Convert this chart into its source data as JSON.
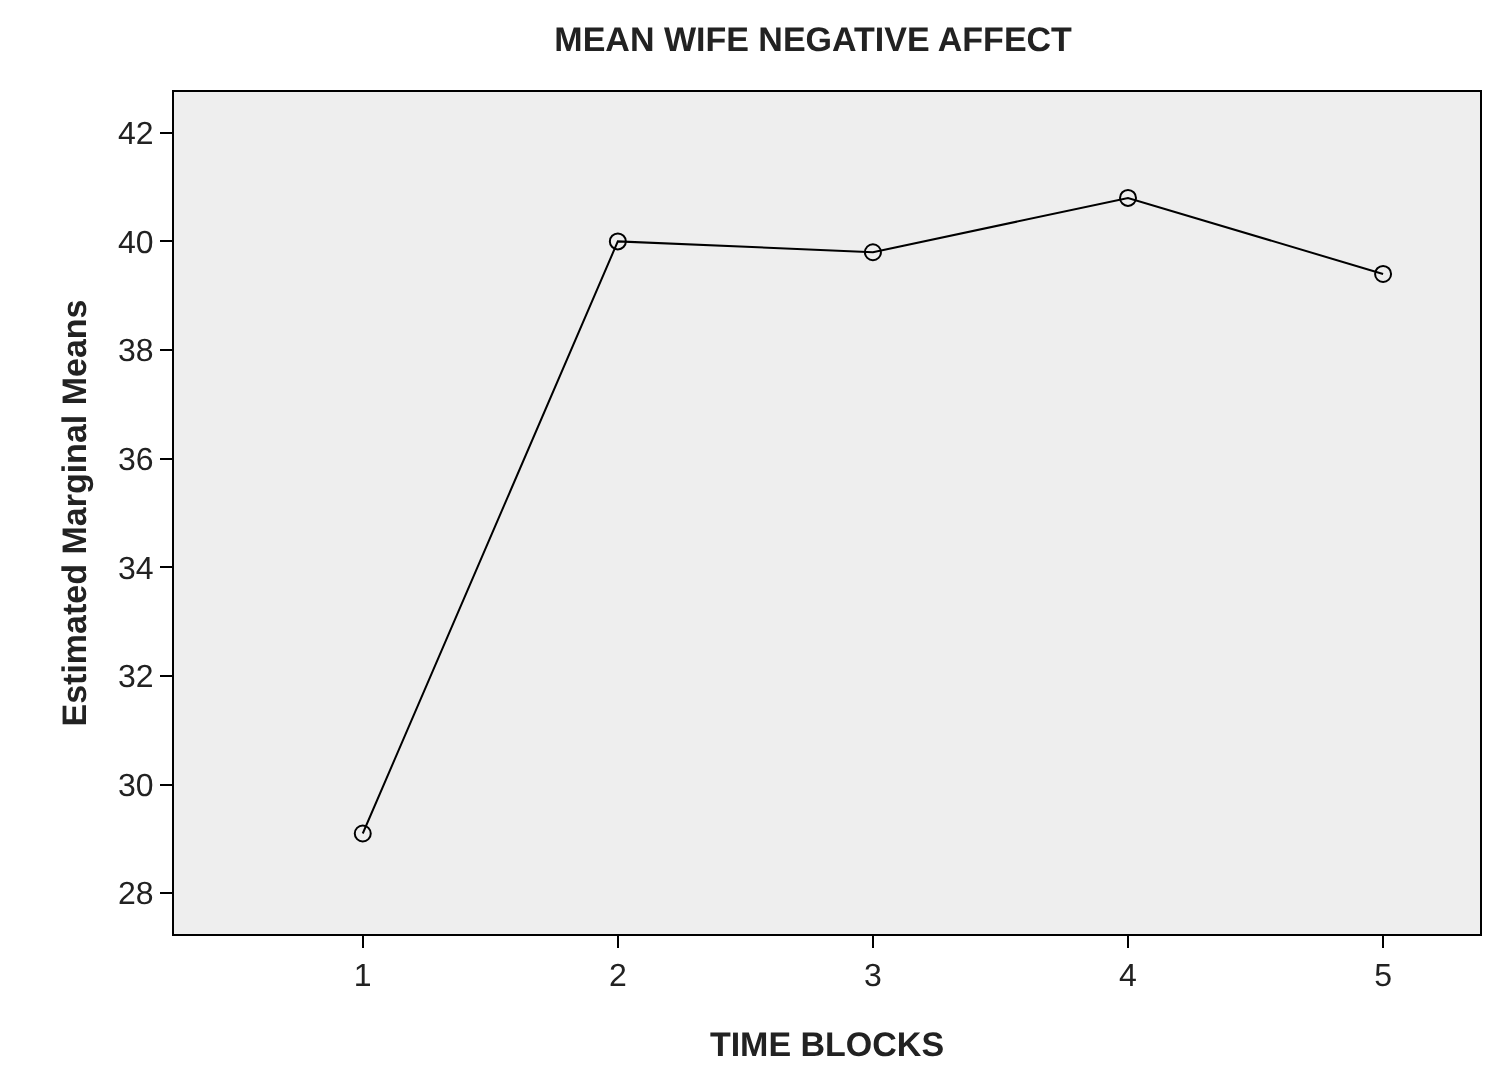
{
  "chart_data": {
    "type": "line",
    "title": "MEAN WIFE NEGATIVE AFFECT",
    "xlabel": "TIME BLOCKS",
    "ylabel": "Estimated Marginal Means",
    "x": [
      1,
      2,
      3,
      4,
      5
    ],
    "series": [
      {
        "color": "#000000",
        "values": [
          29.1,
          40.0,
          39.8,
          40.8,
          39.4
        ]
      }
    ],
    "xlim": [
      0.26,
      5.38
    ],
    "xticks": [
      1,
      2,
      3,
      4,
      5
    ],
    "ylim": [
      27.25,
      42.75
    ],
    "yticks": [
      28,
      30,
      32,
      34,
      36,
      38,
      40,
      42
    ],
    "grid": false,
    "marker": "circle",
    "line_style": "solid"
  }
}
